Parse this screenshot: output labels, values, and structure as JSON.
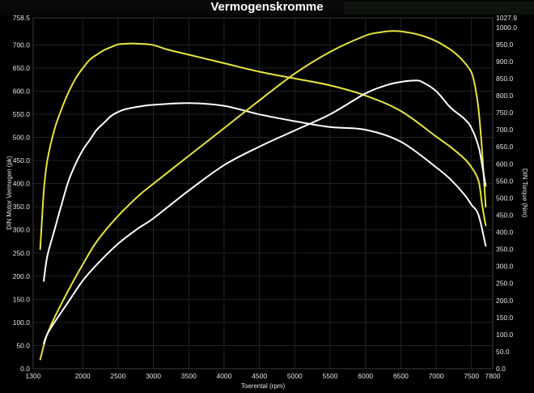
{
  "chart_data": {
    "type": "line",
    "title": "Vermogenskromme",
    "xlabel": "Toerental (rpm)",
    "ylabel": "DIN Motor Vermogen (pk)",
    "y2label": "DIN Torque (Nm)",
    "xlim": [
      1300,
      7800
    ],
    "ylim": [
      0,
      758.5
    ],
    "y2lim": [
      0,
      1027.9
    ],
    "grid": true,
    "x_ticks": [
      "1300",
      "2000",
      "2500",
      "3000",
      "3500",
      "4000",
      "4500",
      "5000",
      "5500",
      "6000",
      "6500",
      "7000",
      "7500",
      "7800"
    ],
    "y_ticks": [
      "0.0",
      "50.0",
      "100.0",
      "150.0",
      "200.0",
      "250.0",
      "300.0",
      "350.0",
      "400.0",
      "450.0",
      "500.0",
      "550.0",
      "600.0",
      "650.0",
      "700.0",
      "758.5"
    ],
    "y2_ticks": [
      "0.0",
      "50.0",
      "100.0",
      "150.0",
      "200.0",
      "250.0",
      "300.0",
      "350.0",
      "400.0",
      "450.0",
      "500.0",
      "550.0",
      "600.0",
      "650.0",
      "700.0",
      "750.0",
      "800.0",
      "850.0",
      "900.0",
      "950.0",
      "1000.0",
      "1027.9"
    ],
    "series": [
      {
        "color": "#e8e43a",
        "axis": "right",
        "x": [
          1400,
          1450,
          1500,
          1600,
          1700,
          1800,
          1900,
          2000,
          2100,
          2200,
          2300,
          2400,
          2500,
          2600,
          2700,
          2800,
          3000,
          3200,
          3500,
          4000,
          4500,
          5000,
          5500,
          6000,
          6500,
          7000,
          7200,
          7400,
          7500,
          7600,
          7650,
          7700
        ],
        "values": [
          350,
          520,
          610,
          700,
          760,
          810,
          850,
          880,
          905,
          920,
          933,
          942,
          950,
          952,
          953,
          952,
          948,
          935,
          920,
          895,
          870,
          850,
          830,
          800,
          755,
          680,
          650,
          615,
          590,
          550,
          480,
          420
        ]
      },
      {
        "color": "#ffffff",
        "axis": "right",
        "x": [
          1450,
          1500,
          1600,
          1700,
          1800,
          1900,
          2000,
          2100,
          2200,
          2300,
          2400,
          2500,
          2600,
          2800,
          3000,
          3500,
          4000,
          4500,
          5000,
          5500,
          6000,
          6500,
          7000,
          7200,
          7400,
          7500,
          7600,
          7700
        ],
        "values": [
          257,
          330,
          405,
          480,
          550,
          600,
          640,
          670,
          700,
          720,
          740,
          752,
          760,
          768,
          773,
          778,
          770,
          745,
          725,
          708,
          700,
          665,
          590,
          555,
          510,
          480,
          450,
          360
        ]
      },
      {
        "color": "#e8e43a",
        "axis": "left",
        "x": [
          1400,
          1450,
          1500,
          1600,
          1800,
          2000,
          2200,
          2500,
          2800,
          3000,
          3500,
          4000,
          4500,
          5000,
          5500,
          6000,
          6200,
          6400,
          6600,
          6800,
          7000,
          7200,
          7300,
          7400,
          7500,
          7550,
          7600,
          7650,
          7700
        ],
        "values": [
          20,
          50,
          75,
          110,
          170,
          225,
          275,
          330,
          375,
          400,
          460,
          520,
          580,
          638,
          685,
          720,
          727,
          730,
          727,
          720,
          708,
          690,
          678,
          662,
          640,
          610,
          560,
          470,
          350
        ]
      },
      {
        "color": "#ffffff",
        "axis": "left",
        "x": [
          1450,
          1500,
          1600,
          1800,
          2000,
          2200,
          2500,
          2800,
          3000,
          3500,
          4000,
          4500,
          5000,
          5500,
          6000,
          6300,
          6500,
          6700,
          6800,
          7000,
          7200,
          7400,
          7500,
          7600,
          7650,
          7700
        ],
        "values": [
          55,
          75,
          100,
          145,
          190,
          225,
          270,
          305,
          325,
          385,
          440,
          480,
          515,
          550,
          595,
          613,
          620,
          623,
          620,
          600,
          565,
          540,
          520,
          480,
          440,
          395
        ]
      }
    ]
  }
}
